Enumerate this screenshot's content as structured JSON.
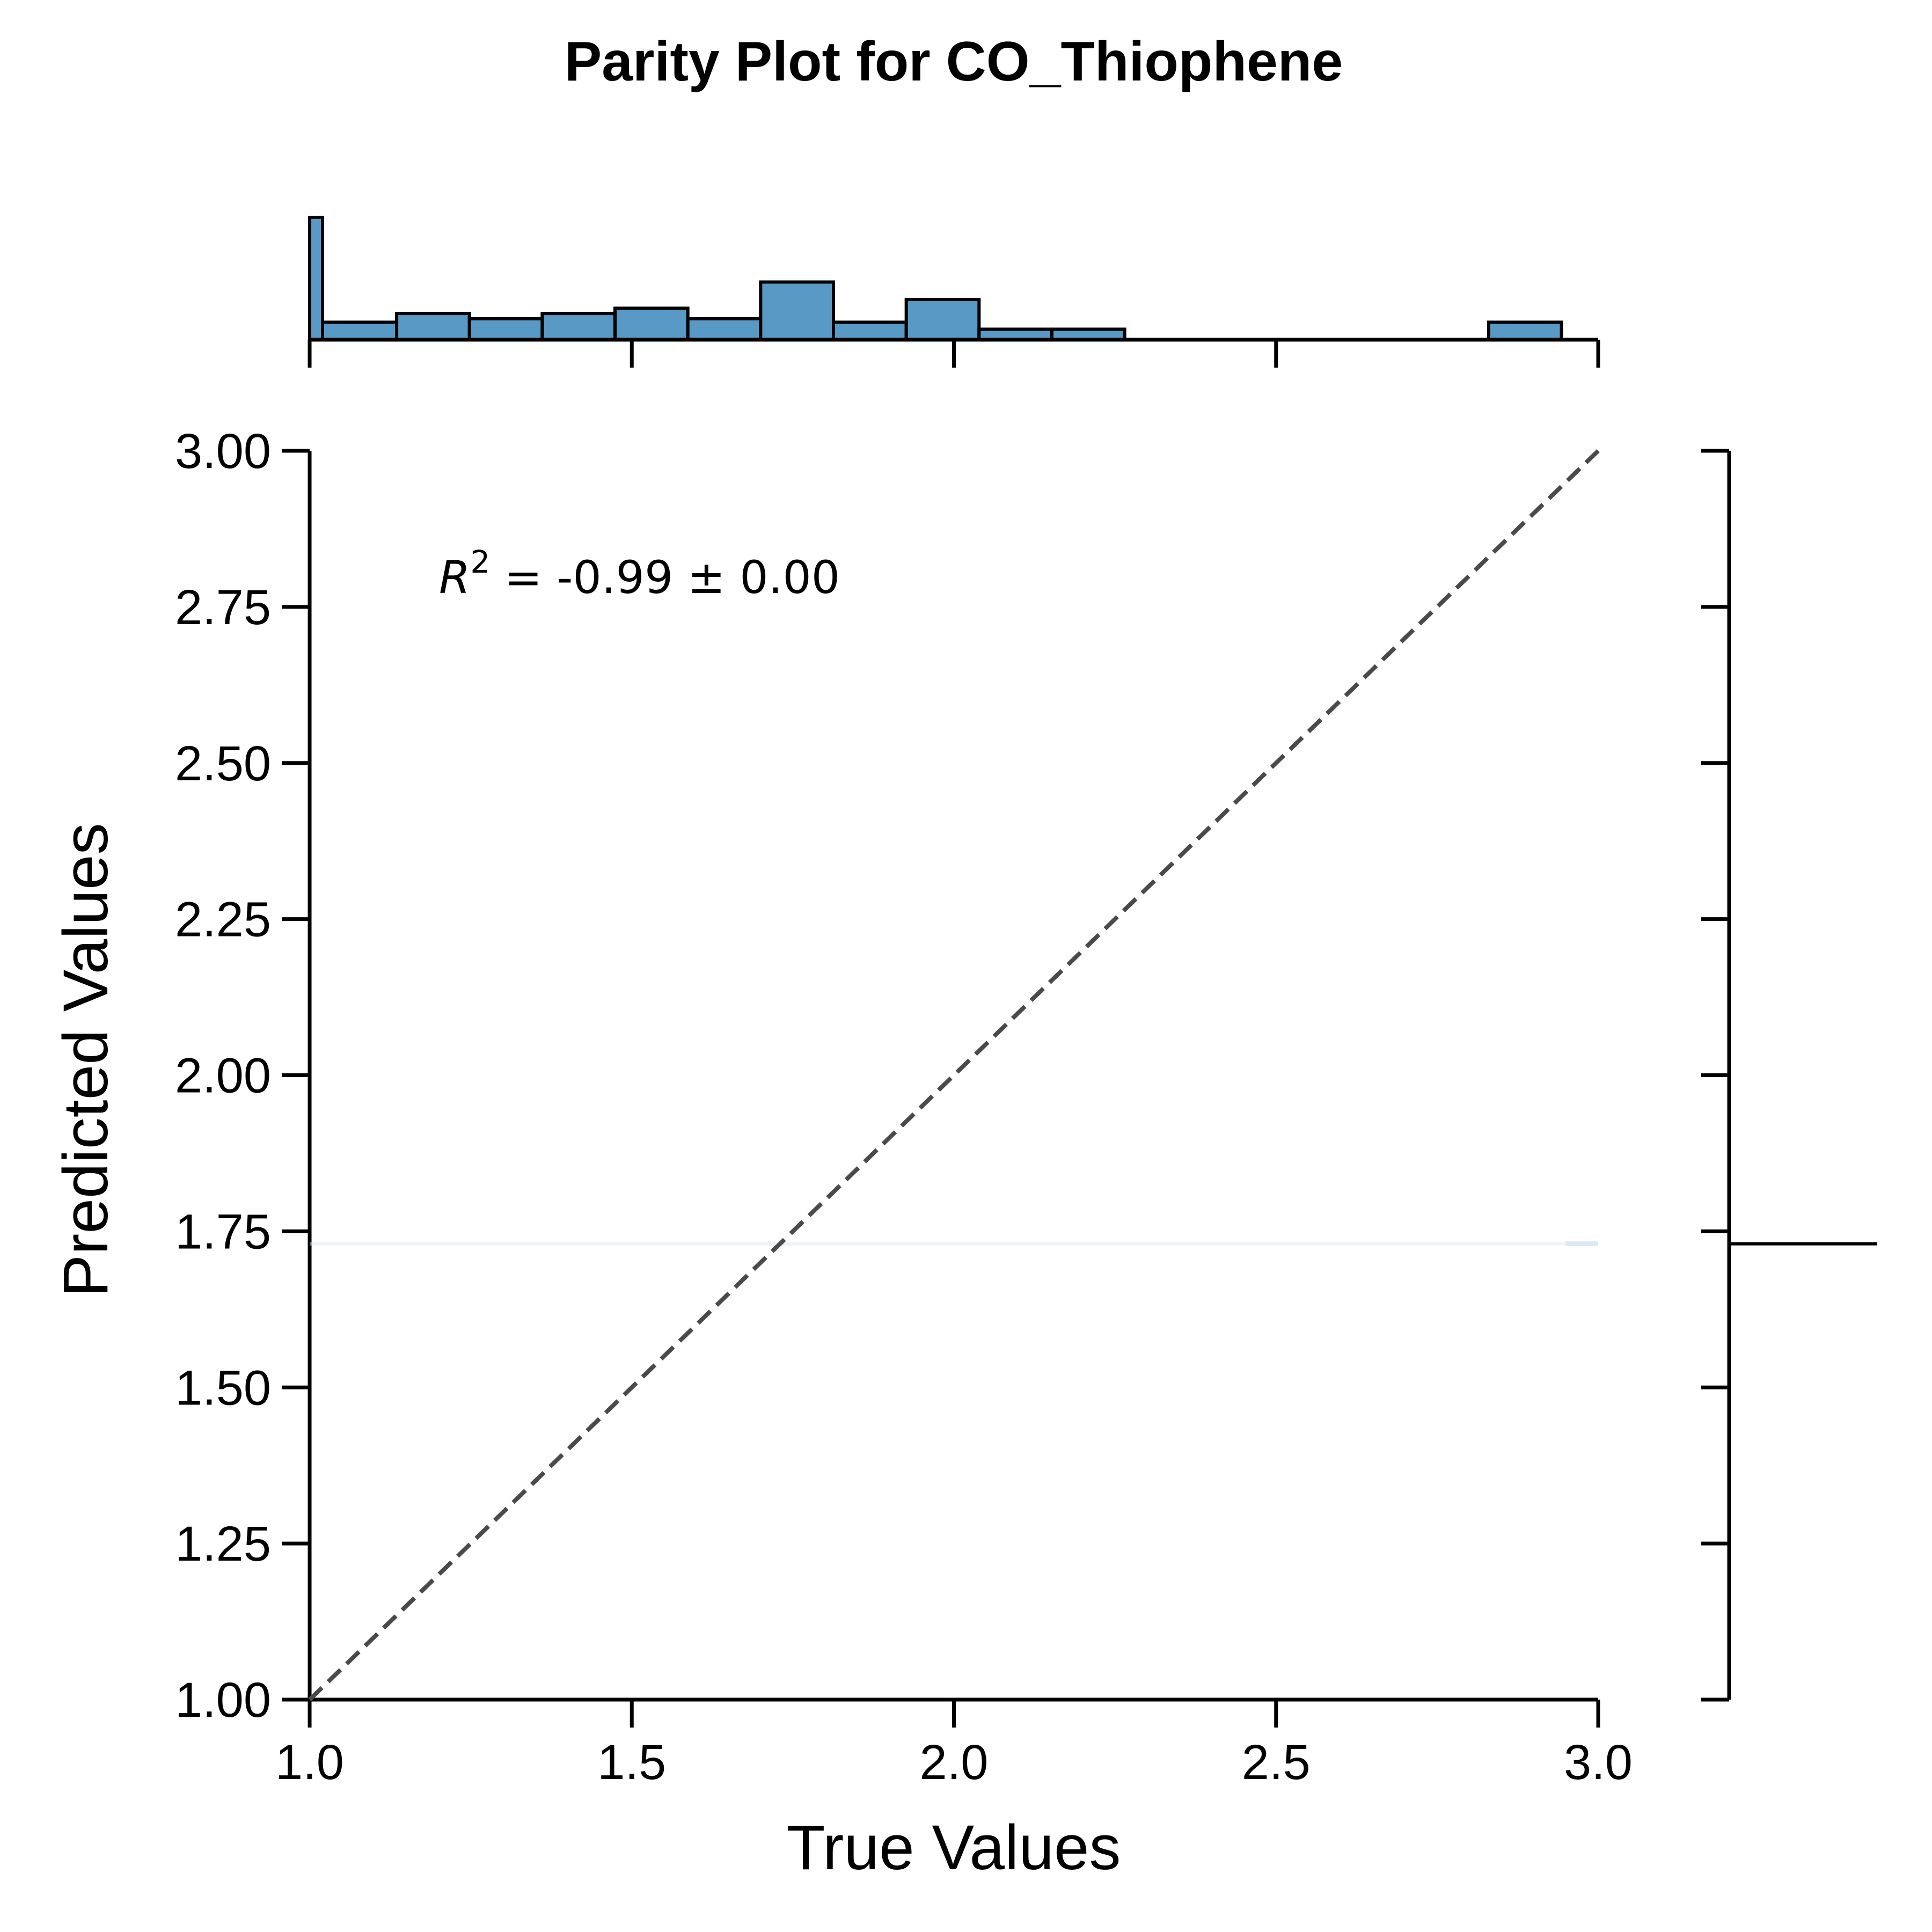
{
  "chart_data": {
    "type": "scatter",
    "title": "Parity Plot for CO_Thiophene",
    "xlabel": "True Values",
    "ylabel": "Predicted Values",
    "xlim": [
      1.0,
      3.0
    ],
    "ylim": [
      1.0,
      3.0
    ],
    "x_ticks": [
      "1.0",
      "1.5",
      "2.0",
      "2.5",
      "3.0"
    ],
    "y_ticks": [
      "1.00",
      "1.25",
      "1.50",
      "1.75",
      "2.00",
      "2.25",
      "2.50",
      "2.75",
      "3.00"
    ],
    "annotation": {
      "r_symbol": "R",
      "r_superscript": "2",
      "text": " = -0.99 ± 0.00"
    },
    "parity_line": {
      "from": [
        1.0,
        1.0
      ],
      "to": [
        3.0,
        3.0
      ],
      "style": "dashed"
    },
    "predicted_constant": 1.73,
    "top_histogram": {
      "bin_width": 0.113,
      "bins": [
        {
          "x0": 1.0,
          "x1": 1.02,
          "count": 7
        },
        {
          "x0": 1.02,
          "x1": 1.135,
          "count": 1
        },
        {
          "x0": 1.135,
          "x1": 1.248,
          "count": 1.5
        },
        {
          "x0": 1.248,
          "x1": 1.361,
          "count": 1.2
        },
        {
          "x0": 1.361,
          "x1": 1.474,
          "count": 1.5
        },
        {
          "x0": 1.474,
          "x1": 1.587,
          "count": 1.8
        },
        {
          "x0": 1.587,
          "x1": 1.7,
          "count": 1.2
        },
        {
          "x0": 1.7,
          "x1": 1.813,
          "count": 3.3
        },
        {
          "x0": 1.813,
          "x1": 1.926,
          "count": 1
        },
        {
          "x0": 1.926,
          "x1": 2.039,
          "count": 2.3
        },
        {
          "x0": 2.039,
          "x1": 2.152,
          "count": 0.6
        },
        {
          "x0": 2.152,
          "x1": 2.265,
          "count": 0.6
        },
        {
          "x0": 2.83,
          "x1": 2.943,
          "count": 1
        }
      ],
      "max_count": 7
    },
    "right_marginal": {
      "value": 1.73
    },
    "colors": {
      "histogram_fill": "#5899c6",
      "histogram_edge": "#000000",
      "parity_line": "#4a4a4a",
      "prediction_band": "#dbe8f6"
    },
    "grid": false,
    "legend": "none"
  }
}
